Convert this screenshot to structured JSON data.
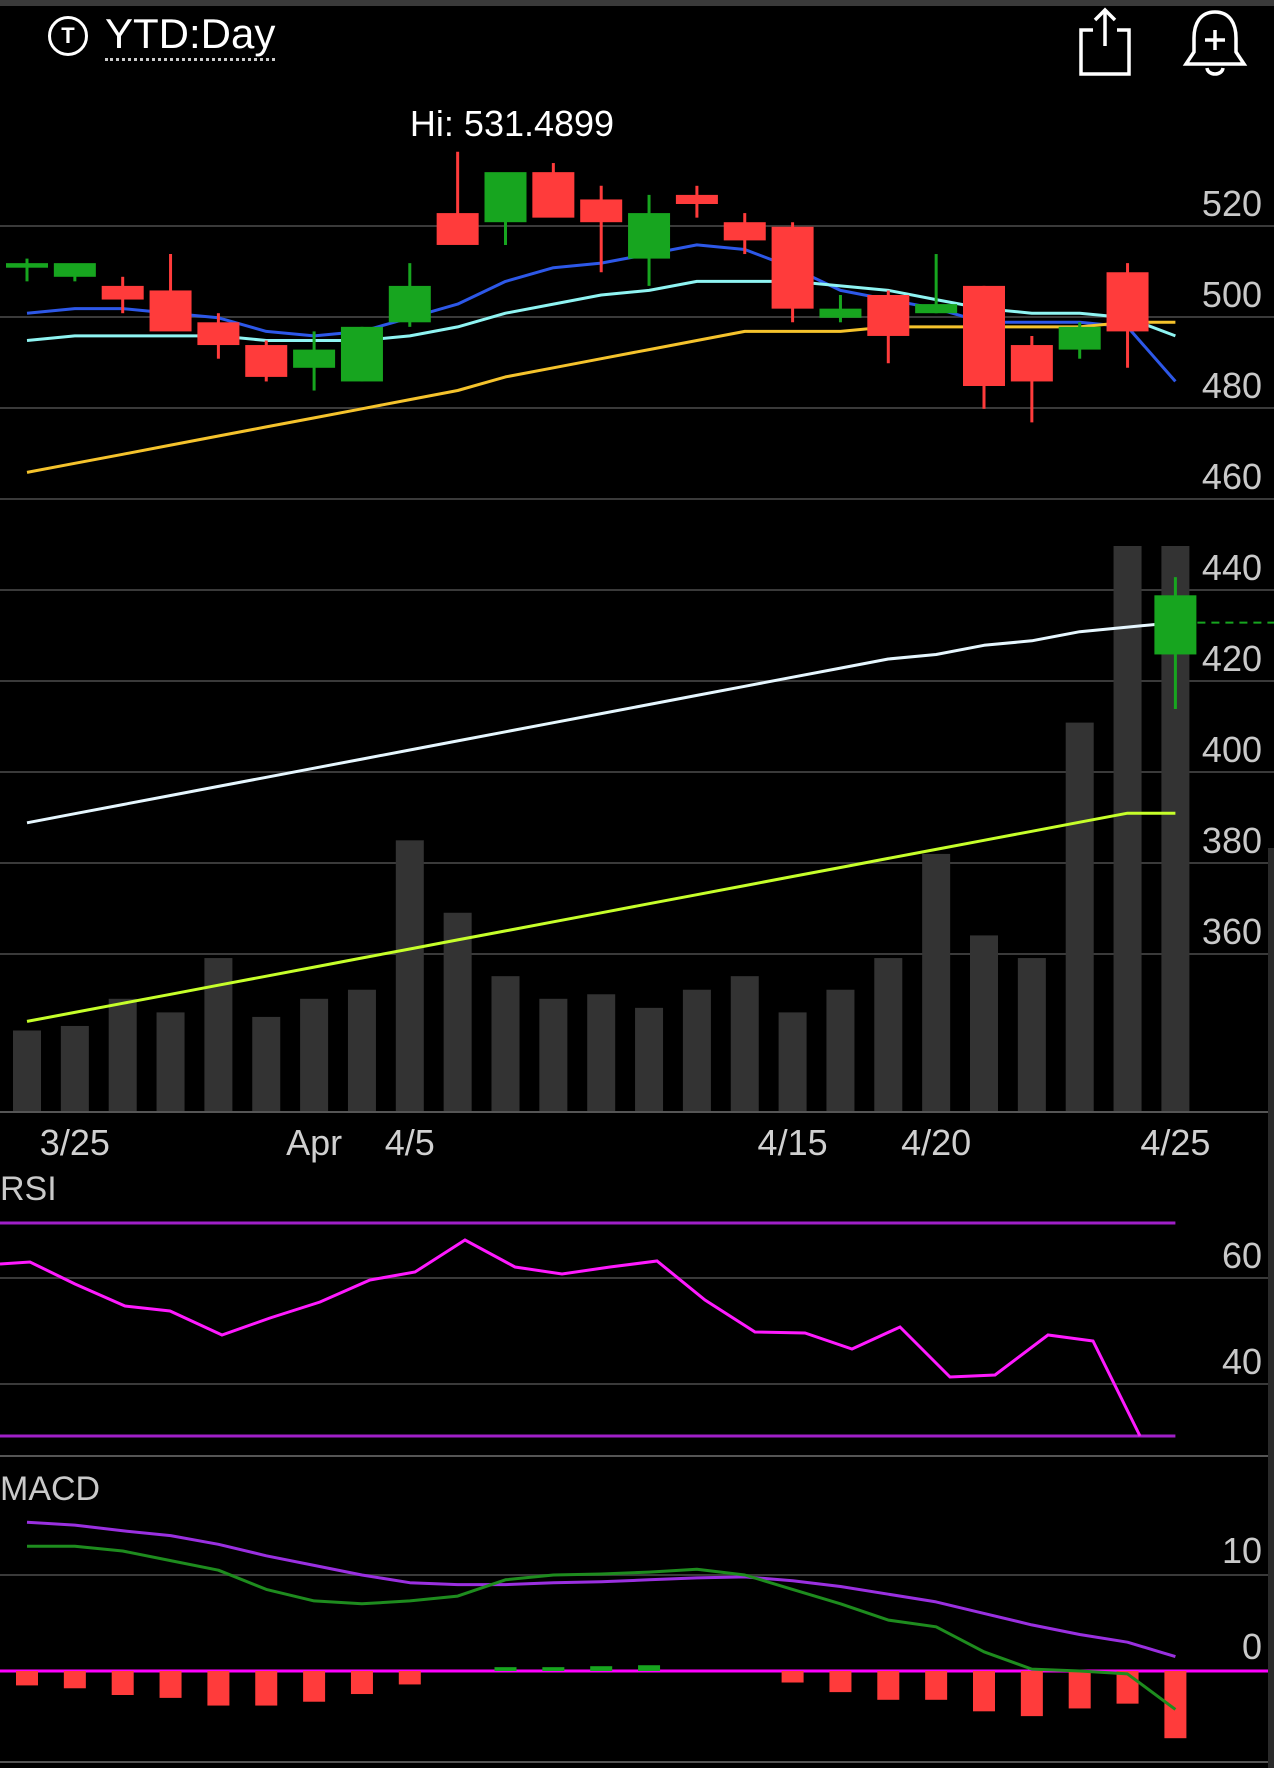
{
  "header": {
    "t_icon_label": "T",
    "ticker_label": "YTD:Day",
    "share_icon": "share-icon",
    "alert_icon": "bell-plus-icon"
  },
  "colors": {
    "up": "#17a51f",
    "down": "#ff3b3b",
    "grid": "#3a3a3a",
    "ma_blue": "#2d58e8",
    "ma_cyan": "#8ff4f2",
    "ma_gold": "#f5c32c",
    "ma_white": "#e6f7ff",
    "vol": "#333333",
    "vol_ma": "#c6ff2a",
    "rsi": "#ff1aff",
    "rsi_band": "#a020c8",
    "macd_line": "#1e8c1e",
    "macd_signal": "#9a30e0"
  },
  "chart_data": [
    {
      "type": "candlestick",
      "title": "YTD:Day",
      "annotation": "Hi: 531.4899",
      "y_tick_labels": [
        "520",
        "500",
        "480",
        "460",
        "440",
        "420",
        "400",
        "380",
        "360"
      ],
      "ylim": [
        340,
        540
      ],
      "x_tick_labels": [
        "3/25",
        "Apr",
        "4/5",
        "4/15",
        "4/20",
        "4/25"
      ],
      "x_tick_dates": [
        "3/25",
        "4/1",
        "4/5",
        "4/15",
        "4/20",
        "4/25"
      ],
      "dates": [
        "3/24",
        "3/25",
        "3/26",
        "3/29",
        "3/30",
        "3/31",
        "4/1",
        "4/2",
        "4/5",
        "4/6",
        "4/7",
        "4/8",
        "4/9",
        "4/12",
        "4/13",
        "4/14",
        "4/15",
        "4/16",
        "4/19",
        "4/20",
        "4/21",
        "4/22",
        "4/23",
        "4/24",
        "4/25"
      ],
      "candles": [
        {
          "date": "3/24",
          "o": 506,
          "h": 508,
          "l": 503,
          "c": 507
        },
        {
          "date": "3/25",
          "o": 504,
          "h": 506,
          "l": 503,
          "c": 507
        },
        {
          "date": "3/26",
          "o": 502,
          "h": 504,
          "l": 496,
          "c": 499
        },
        {
          "date": "3/29",
          "o": 501,
          "h": 509,
          "l": 493,
          "c": 492
        },
        {
          "date": "3/30",
          "o": 494,
          "h": 496,
          "l": 486,
          "c": 489
        },
        {
          "date": "3/31",
          "o": 489,
          "h": 490,
          "l": 481,
          "c": 482
        },
        {
          "date": "4/1",
          "o": 484,
          "h": 492,
          "l": 479,
          "c": 488
        },
        {
          "date": "4/2",
          "o": 481,
          "h": 493,
          "l": 481,
          "c": 493
        },
        {
          "date": "4/5",
          "o": 494,
          "h": 507,
          "l": 493,
          "c": 502
        },
        {
          "date": "4/6",
          "o": 518,
          "h": 531.4899,
          "l": 512,
          "c": 511
        },
        {
          "date": "4/7",
          "o": 516,
          "h": 526,
          "l": 511,
          "c": 527
        },
        {
          "date": "4/8",
          "o": 527,
          "h": 529,
          "l": 519,
          "c": 517
        },
        {
          "date": "4/9",
          "o": 521,
          "h": 524,
          "l": 505,
          "c": 516
        },
        {
          "date": "4/12",
          "o": 508,
          "h": 522,
          "l": 502,
          "c": 518
        },
        {
          "date": "4/13",
          "o": 522,
          "h": 524,
          "l": 517,
          "c": 520
        },
        {
          "date": "4/14",
          "o": 516,
          "h": 518,
          "l": 509,
          "c": 512
        },
        {
          "date": "4/15",
          "o": 515,
          "h": 516,
          "l": 494,
          "c": 497
        },
        {
          "date": "4/16",
          "o": 495,
          "h": 500,
          "l": 494,
          "c": 497
        },
        {
          "date": "4/19",
          "o": 500,
          "h": 501,
          "l": 485,
          "c": 491
        },
        {
          "date": "4/20",
          "o": 496,
          "h": 509,
          "l": 496,
          "c": 498
        },
        {
          "date": "4/21",
          "o": 502,
          "h": 502,
          "l": 475,
          "c": 480
        },
        {
          "date": "4/22",
          "o": 489,
          "h": 491,
          "l": 472,
          "c": 481
        },
        {
          "date": "4/23",
          "o": 488,
          "h": 494,
          "l": 486,
          "c": 493
        },
        {
          "date": "4/24",
          "o": 505,
          "h": 507,
          "l": 484,
          "c": 492
        },
        {
          "date": "4/25",
          "o": 421,
          "h": 438,
          "l": 409,
          "c": 434
        }
      ],
      "moving_averages": [
        {
          "color_key": "ma_blue",
          "values": [
            496,
            497,
            497,
            496,
            495,
            492,
            491,
            492,
            495,
            498,
            503,
            506,
            507,
            509,
            511,
            510,
            506,
            501,
            499,
            497,
            494,
            494,
            494,
            493,
            481
          ]
        },
        {
          "color_key": "ma_cyan",
          "values": [
            490,
            491,
            491,
            491,
            491,
            490,
            490,
            490,
            491,
            493,
            496,
            498,
            500,
            501,
            503,
            503,
            503,
            502,
            501,
            499,
            497,
            496,
            496,
            495,
            491
          ]
        },
        {
          "color_key": "ma_gold",
          "values": [
            461,
            463,
            465,
            467,
            469,
            471,
            473,
            475,
            477,
            479,
            482,
            484,
            486,
            488,
            490,
            492,
            492,
            492,
            493,
            493,
            493,
            493,
            493,
            494,
            494
          ]
        },
        {
          "color_key": "ma_white",
          "values": [
            384,
            386,
            388,
            390,
            392,
            394,
            396,
            398,
            400,
            402,
            404,
            406,
            408,
            410,
            412,
            414,
            416,
            418,
            420,
            421,
            423,
            424,
            426,
            427,
            428
          ]
        }
      ],
      "last_price_line": 428
    },
    {
      "type": "bar",
      "title": "Volume",
      "dates": [
        "3/24",
        "3/25",
        "3/26",
        "3/29",
        "3/30",
        "3/31",
        "4/1",
        "4/2",
        "4/5",
        "4/6",
        "4/7",
        "4/8",
        "4/9",
        "4/12",
        "4/13",
        "4/14",
        "4/15",
        "4/16",
        "4/19",
        "4/20",
        "4/21",
        "4/22",
        "4/23",
        "4/24",
        "4/25"
      ],
      "values": [
        18,
        19,
        25,
        22,
        34,
        21,
        25,
        27,
        60,
        44,
        30,
        25,
        26,
        23,
        27,
        30,
        22,
        27,
        34,
        57,
        39,
        34,
        86,
        125,
        125
      ],
      "vol_max": 125,
      "moving_average": [
        20,
        22,
        24,
        26,
        28,
        30,
        32,
        34,
        36,
        38,
        40,
        42,
        44,
        46,
        48,
        50,
        52,
        54,
        56,
        58,
        60,
        62,
        64,
        66,
        66
      ]
    },
    {
      "type": "line",
      "title": "RSI",
      "y_tick_labels": [
        "60",
        "40"
      ],
      "ylim": [
        27,
        78
      ],
      "upper_band": 70,
      "lower_band": 30,
      "dates": [
        "3/24",
        "3/25",
        "3/26",
        "3/29",
        "3/30",
        "3/31",
        "4/1",
        "4/2",
        "4/5",
        "4/6",
        "4/7",
        "4/8",
        "4/9",
        "4/12",
        "4/13",
        "4/14",
        "4/15",
        "4/16",
        "4/19",
        "4/20",
        "4/21",
        "4/22",
        "4/23",
        "4/24",
        "4/25"
      ],
      "values": [
        63,
        58,
        57,
        51,
        54,
        57,
        60,
        62,
        67,
        62,
        61,
        62,
        63,
        56,
        49,
        49,
        47,
        50,
        41,
        42,
        49,
        48,
        30,
        30,
        30
      ],
      "full_values": [
        63,
        63.5,
        60,
        56.5,
        56,
        51.5,
        54.5,
        57.5,
        61.5,
        63,
        67.5,
        63,
        61.5,
        62.5,
        63.5,
        56,
        49.5,
        49.3,
        47,
        50.5,
        42,
        42.2,
        49,
        48,
        30
      ]
    },
    {
      "type": "line",
      "title": "MACD",
      "y_tick_labels": [
        "10",
        "0"
      ],
      "ylim": [
        -9,
        16
      ],
      "dates": [
        "3/24",
        "3/25",
        "3/26",
        "3/29",
        "3/30",
        "3/31",
        "4/1",
        "4/2",
        "4/5",
        "4/6",
        "4/7",
        "4/8",
        "4/9",
        "4/12",
        "4/13",
        "4/14",
        "4/15",
        "4/16",
        "4/19",
        "4/20",
        "4/21",
        "4/22",
        "4/23",
        "4/24",
        "4/25"
      ],
      "macd": [
        13,
        13,
        12.5,
        11.5,
        10.5,
        8.5,
        7.3,
        7,
        7.3,
        7.8,
        9.5,
        10,
        10.1,
        10.3,
        10.6,
        10,
        8.5,
        7,
        5.3,
        4.6,
        2,
        0.2,
        0,
        -0.3,
        -4
      ],
      "signal": [
        15.5,
        15.2,
        14.6,
        14.1,
        13.2,
        12,
        11,
        10,
        9.2,
        9,
        9,
        9.2,
        9.3,
        9.5,
        9.7,
        9.8,
        9.4,
        8.8,
        8,
        7.2,
        6,
        4.8,
        3.8,
        3,
        1.5
      ],
      "histogram": [
        -1.5,
        -1.8,
        -2.5,
        -2.8,
        -3.6,
        -3.6,
        -3.2,
        -2.4,
        -1.4,
        0,
        0.4,
        0.4,
        0.5,
        0.6,
        0,
        0,
        -1.2,
        -2.2,
        -3,
        -3,
        -4.2,
        -4.7,
        -3.9,
        -3.4,
        -7
      ]
    }
  ]
}
